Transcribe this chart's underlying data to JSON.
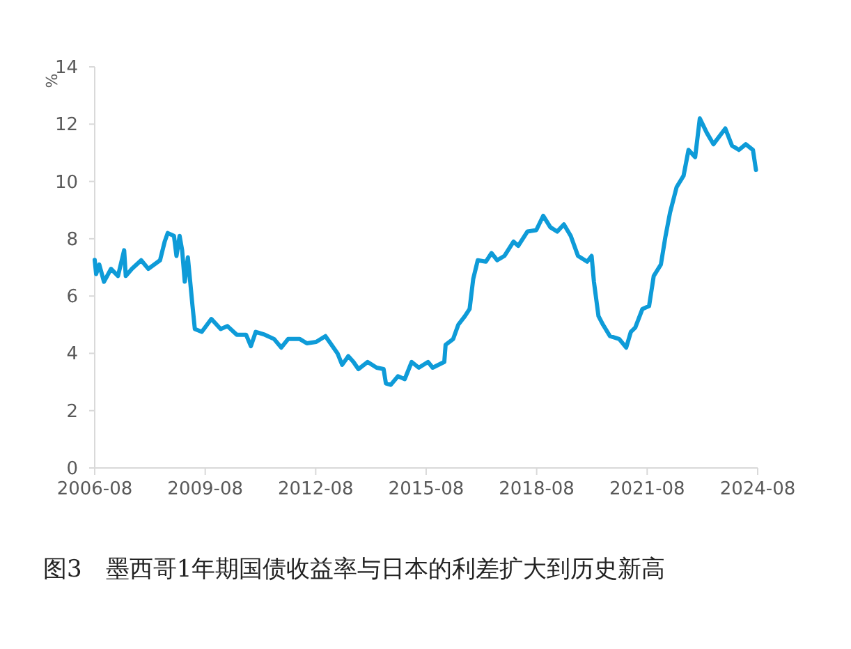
{
  "chart_data": {
    "type": "line",
    "title": "图3　墨西哥1年期国债收益率与日本的利差扩大到历史新高",
    "ylabel": "%",
    "xlim": [
      "2006-08",
      "2024-08"
    ],
    "xticks": [
      "2006-08",
      "2009-08",
      "2012-08",
      "2015-08",
      "2018-08",
      "2021-08",
      "2024-08"
    ],
    "ylim": [
      0,
      14
    ],
    "yticks": [
      0,
      2,
      4,
      6,
      8,
      10,
      12,
      14
    ],
    "line_style": "solid",
    "series": [
      {
        "color": "#0e9bd8",
        "x": [
          "2006-08-01",
          "2006-08-15",
          "2006-09-15",
          "2006-11-01",
          "2007-01-10",
          "2007-03-20",
          "2007-05-20",
          "2007-06-05",
          "2007-08-05",
          "2007-11-05",
          "2008-01-15",
          "2008-05-10",
          "2008-06-25",
          "2008-07-25",
          "2008-09-25",
          "2008-10-20",
          "2008-11-20",
          "2008-12-15",
          "2009-01-10",
          "2009-02-10",
          "2009-03-05",
          "2009-03-28",
          "2009-04-20",
          "2009-06-28",
          "2009-10-01",
          "2010-01-01",
          "2010-03-10",
          "2010-06-10",
          "2010-09-10",
          "2010-10-28",
          "2010-12-15",
          "2011-03-15",
          "2011-06-15",
          "2011-08-25",
          "2011-11-01",
          "2012-02-25",
          "2012-05-05",
          "2012-08-05",
          "2012-11-05",
          "2012-12-25",
          "2013-03-05",
          "2013-04-20",
          "2013-06-20",
          "2013-08-10",
          "2013-09-28",
          "2013-12-28",
          "2014-03-28",
          "2014-06-05",
          "2014-06-28",
          "2014-08-15",
          "2014-10-25",
          "2015-01-01",
          "2015-03-10",
          "2015-05-20",
          "2015-08-20",
          "2015-10-05",
          "2016-01-28",
          "2016-02-10",
          "2016-04-25",
          "2016-06-15",
          "2016-08-20",
          "2016-10-05",
          "2016-11-10",
          "2016-12-25",
          "2017-03-15",
          "2017-05-10",
          "2017-07-05",
          "2017-09-15",
          "2017-12-15",
          "2018-01-30",
          "2018-05-01",
          "2018-07-28",
          "2018-10-05",
          "2018-12-15",
          "2019-02-20",
          "2019-04-28",
          "2019-07-05",
          "2019-09-15",
          "2019-12-15",
          "2020-01-28",
          "2020-02-20",
          "2020-04-05",
          "2020-05-20",
          "2020-07-28",
          "2020-10-28",
          "2021-01-05",
          "2021-02-20",
          "2021-04-05",
          "2021-06-15",
          "2021-08-20",
          "2021-10-05",
          "2021-12-15",
          "2022-01-28",
          "2022-03-15",
          "2022-05-20",
          "2022-07-28",
          "2022-09-15",
          "2022-11-20",
          "2023-01-05",
          "2023-03-15",
          "2023-05-20",
          "2023-09-15",
          "2023-11-20",
          "2024-01-28",
          "2024-04-05",
          "2024-06-15",
          "2024-07-15"
        ],
        "values": [
          7.26,
          6.77,
          7.1,
          6.5,
          6.95,
          6.7,
          7.6,
          6.7,
          6.95,
          7.25,
          6.95,
          7.25,
          7.9,
          8.2,
          8.1,
          7.4,
          8.1,
          7.6,
          6.5,
          7.35,
          6.5,
          5.65,
          4.85,
          4.75,
          5.2,
          4.85,
          4.95,
          4.65,
          4.65,
          4.25,
          4.75,
          4.65,
          4.5,
          4.2,
          4.5,
          4.5,
          4.35,
          4.4,
          4.6,
          4.35,
          4.0,
          3.6,
          3.9,
          3.7,
          3.45,
          3.7,
          3.5,
          3.45,
          2.95,
          2.9,
          3.2,
          3.1,
          3.7,
          3.5,
          3.7,
          3.5,
          3.7,
          4.3,
          4.5,
          5.0,
          5.3,
          5.55,
          6.6,
          7.25,
          7.2,
          7.5,
          7.25,
          7.4,
          7.9,
          7.75,
          8.25,
          8.3,
          8.8,
          8.4,
          8.25,
          8.5,
          8.1,
          7.4,
          7.2,
          7.4,
          6.5,
          5.3,
          5.0,
          4.6,
          4.5,
          4.2,
          4.75,
          4.9,
          5.55,
          5.65,
          6.7,
          7.1,
          8.05,
          8.9,
          9.8,
          10.2,
          11.1,
          10.85,
          12.2,
          11.7,
          11.3,
          11.85,
          11.25,
          11.1,
          11.3,
          11.1,
          10.4
        ]
      }
    ]
  }
}
